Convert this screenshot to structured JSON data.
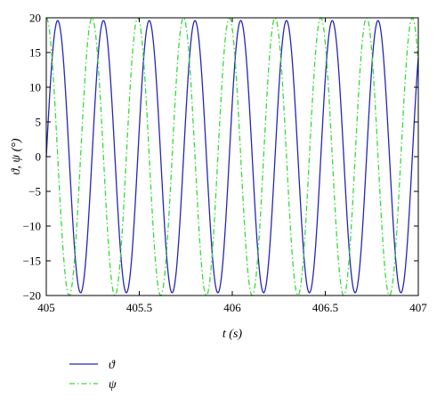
{
  "chart_data": {
    "type": "line",
    "title": "",
    "xlabel": "t (s)",
    "ylabel": "ϑ, ψ (°)",
    "xlim": [
      405,
      407
    ],
    "ylim": [
      -20,
      20
    ],
    "xticks": [
      405,
      405.5,
      406,
      406.5,
      407
    ],
    "xtick_labels": [
      "405",
      "405.5",
      "406",
      "406.5",
      "407"
    ],
    "yticks": [
      -20,
      -15,
      -10,
      -5,
      0,
      5,
      10,
      15,
      20
    ],
    "ytick_labels": [
      "−20",
      "−15",
      "−10",
      "−5",
      "0",
      "5",
      "10",
      "15",
      "20"
    ],
    "grid": false,
    "legend_position": "below-left",
    "series": [
      {
        "name": "ϑ",
        "color": "#2626b8",
        "style": "solid",
        "amplitude": 19.6,
        "period": 0.246,
        "value_at_xmin": 0,
        "direction_at_xmin": "rising"
      },
      {
        "name": "ψ",
        "color": "#33dd33",
        "style": "dash-dot",
        "amplitude": 20,
        "period": 0.246,
        "value_at_xmin": 20,
        "direction_at_xmin": "falling"
      }
    ]
  }
}
